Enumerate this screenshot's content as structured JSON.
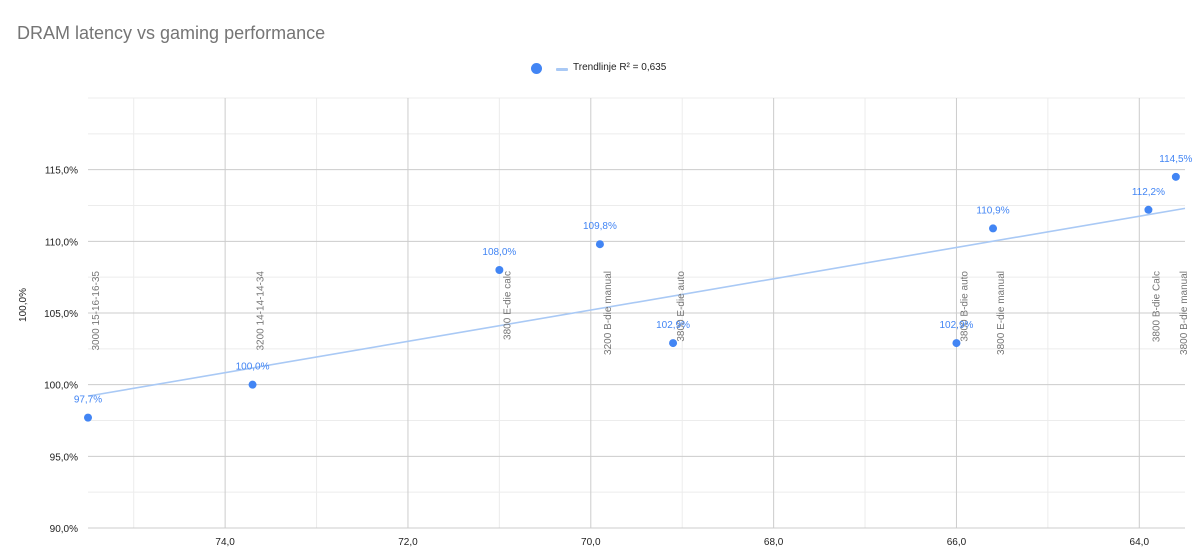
{
  "chart_data": {
    "type": "scatter",
    "title": "DRAM latency vs gaming performance",
    "xlabel": "",
    "ylabel": "100,0%",
    "x_reversed": true,
    "xlim": [
      63.5,
      75.5
    ],
    "ylim": [
      90,
      120
    ],
    "x_ticks": [
      {
        "value": 74,
        "label": "74,0"
      },
      {
        "value": 72,
        "label": "72,0"
      },
      {
        "value": 70,
        "label": "70,0"
      },
      {
        "value": 68,
        "label": "68,0"
      },
      {
        "value": 66,
        "label": "66,0"
      },
      {
        "value": 64,
        "label": "64,0"
      }
    ],
    "y_ticks": [
      {
        "value": 90,
        "label": "90,0%"
      },
      {
        "value": 95,
        "label": "95,0%"
      },
      {
        "value": 100,
        "label": "100,0%"
      },
      {
        "value": 105,
        "label": "105,0%"
      },
      {
        "value": 110,
        "label": "110,0%"
      },
      {
        "value": 115,
        "label": "115,0%"
      }
    ],
    "grid": true,
    "legend_position": "top",
    "legend": {
      "series_marker_color": "#4285f4",
      "trend_label": "Trendlinje R² = 0,635"
    },
    "trendline": {
      "x_start": 75.5,
      "y_start": 99.2,
      "x_end": 63.5,
      "y_end": 112.3,
      "color": "#a9c9f5"
    },
    "series": [
      {
        "color": "#4285f4",
        "points": [
          {
            "x": 75.5,
            "y": 97.7,
            "label": "97,7%",
            "category": "3000 15-16-16-35"
          },
          {
            "x": 73.7,
            "y": 100.0,
            "label": "100,0%",
            "category": "3200 14-14-14-34"
          },
          {
            "x": 71.0,
            "y": 108.0,
            "label": "108,0%",
            "category": "3800 E-die calc"
          },
          {
            "x": 69.9,
            "y": 109.8,
            "label": "109,8%",
            "category": "3200 B-die manual"
          },
          {
            "x": 69.1,
            "y": 102.9,
            "label": "102,9%",
            "category": "3800 E-die auto"
          },
          {
            "x": 66.0,
            "y": 102.9,
            "label": "102,9%",
            "category": "3800 B-die auto"
          },
          {
            "x": 65.6,
            "y": 110.9,
            "label": "110,9%",
            "category": "3800 E-die manual"
          },
          {
            "x": 63.9,
            "y": 112.2,
            "label": "112,2%",
            "category": "3800 B-die Calc"
          },
          {
            "x": 63.6,
            "y": 114.5,
            "label": "114,5%",
            "category": "3800 B-die manual"
          }
        ]
      }
    ]
  }
}
